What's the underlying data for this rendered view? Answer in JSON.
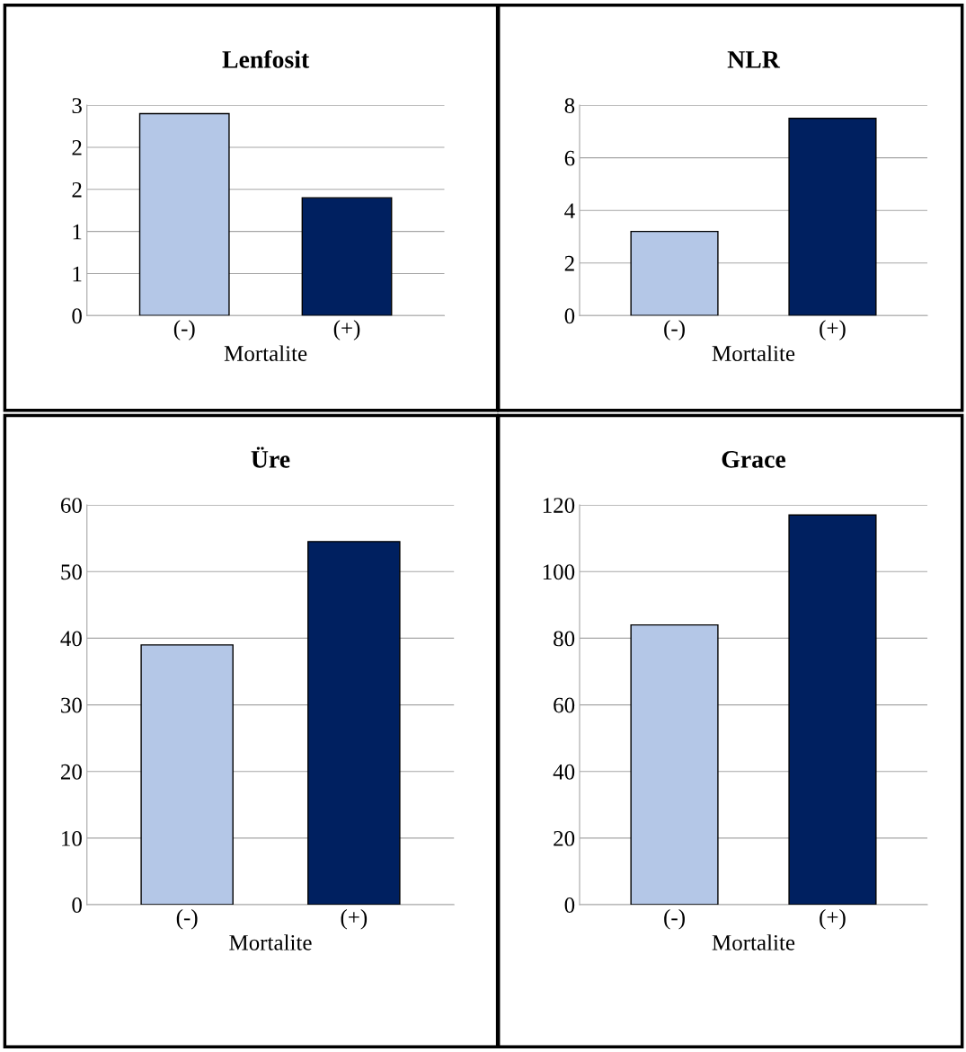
{
  "chart_data": [
    {
      "type": "bar",
      "title": "Lenfosit",
      "xlabel": "Mortalite",
      "categories": [
        "(-)",
        "(+)"
      ],
      "values": [
        2.4,
        1.4
      ],
      "colors": [
        "#b4c7e7",
        "#002060"
      ],
      "ylim": [
        0,
        2.5
      ],
      "yticks": [
        0,
        {
          "value": 0.5,
          "label": "1"
        },
        {
          "value": 1,
          "label": "1"
        },
        {
          "value": 1.5,
          "label": "2"
        },
        {
          "value": 2,
          "label": "2"
        },
        {
          "value": 2.5,
          "label": "3"
        }
      ],
      "grid": "y"
    },
    {
      "type": "bar",
      "title": "NLR",
      "xlabel": "Mortalite",
      "categories": [
        "(-)",
        "(+)"
      ],
      "values": [
        3.2,
        7.5
      ],
      "colors": [
        "#b4c7e7",
        "#002060"
      ],
      "ylim": [
        0,
        8
      ],
      "yticks": [
        0,
        2,
        4,
        6,
        8
      ],
      "grid": "y"
    },
    {
      "type": "bar",
      "title": "Üre",
      "xlabel": "Mortalite",
      "categories": [
        "(-)",
        "(+)"
      ],
      "values": [
        39,
        54.5
      ],
      "colors": [
        "#b4c7e7",
        "#002060"
      ],
      "ylim": [
        0,
        60
      ],
      "yticks": [
        0,
        10,
        20,
        30,
        40,
        50,
        60
      ],
      "grid": "y"
    },
    {
      "type": "bar",
      "title": "Grace",
      "xlabel": "Mortalite",
      "categories": [
        "(-)",
        "(+)"
      ],
      "values": [
        84,
        117
      ],
      "colors": [
        "#b4c7e7",
        "#002060"
      ],
      "ylim": [
        0,
        120
      ],
      "yticks": [
        0,
        20,
        40,
        60,
        80,
        100,
        120
      ],
      "grid": "y"
    }
  ]
}
